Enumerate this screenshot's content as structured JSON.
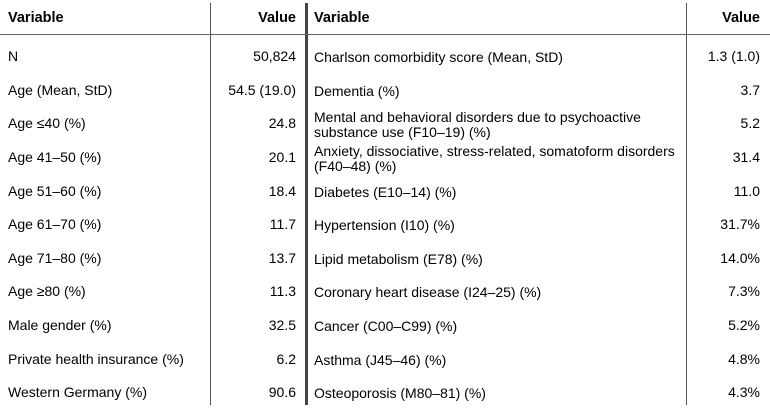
{
  "header": {
    "variable_left": "Variable",
    "value_left": "Value",
    "variable_right": "Variable",
    "value_right": "Value"
  },
  "rows": [
    {
      "lv": "N",
      "lval": "50,824",
      "rv": "Charlson comorbidity score (Mean, StD)",
      "rval": "1.3 (1.0)"
    },
    {
      "lv": "Age (Mean, StD)",
      "lval": "54.5 (19.0)",
      "rv": "Dementia (%)",
      "rval": "3.7"
    },
    {
      "lv": "Age ≤40 (%)",
      "lval": "24.8",
      "rv": "Mental and behavioral disorders due to psychoactive substance use (F10–19) (%)",
      "rval": "5.2"
    },
    {
      "lv": "Age 41–50 (%)",
      "lval": "20.1",
      "rv": "Anxiety, dissociative, stress-related, somatoform disorders (F40–48) (%)",
      "rval": "31.4"
    },
    {
      "lv": "Age 51–60 (%)",
      "lval": "18.4",
      "rv": "Diabetes (E10–14) (%)",
      "rval": "11.0"
    },
    {
      "lv": "Age 61–70 (%)",
      "lval": "11.7",
      "rv": "Hypertension (I10) (%)",
      "rval": "31.7%"
    },
    {
      "lv": "Age 71–80 (%)",
      "lval": "13.7",
      "rv": "Lipid metabolism (E78) (%)",
      "rval": "14.0%"
    },
    {
      "lv": "Age ≥80 (%)",
      "lval": "11.3",
      "rv": "Coronary heart disease (I24–25) (%)",
      "rval": "7.3%"
    },
    {
      "lv": "Male gender (%)",
      "lval": "32.5",
      "rv": "Cancer (C00–C99) (%)",
      "rval": "5.2%"
    },
    {
      "lv": "Private health insurance (%)",
      "lval": "6.2",
      "rv": "Asthma (J45–46) (%)",
      "rval": "4.8%"
    },
    {
      "lv": "Western Germany (%)",
      "lval": "90.6",
      "rv": "Osteoporosis (M80–81) (%)",
      "rval": "4.3%"
    }
  ]
}
